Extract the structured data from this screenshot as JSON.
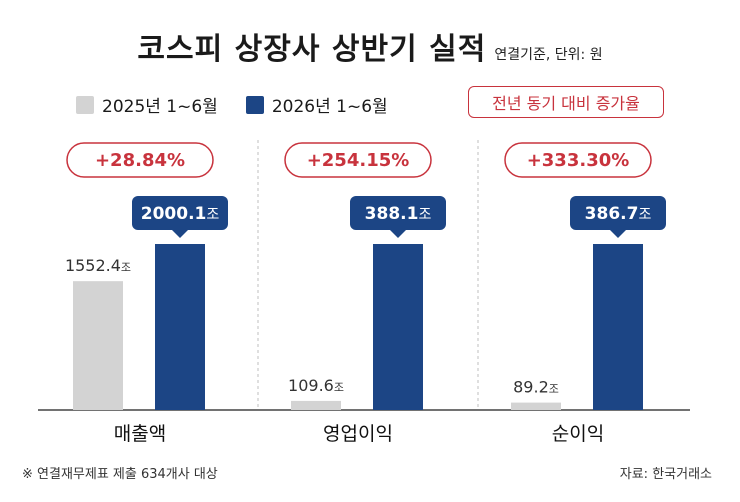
{
  "title": "코스피 상장사 상반기 실적",
  "unit_note": "연결기준, 단위: 원",
  "yoy_label": "전년 동기 대비 증가율",
  "footnote": "※ 연결재무제표 제출 634개사 대상",
  "source": "자료: 한국거래소",
  "colors": {
    "prev": "#d3d3d3",
    "curr": "#1c4585",
    "accent": "#c8333d",
    "divider": "#bfbfbf"
  },
  "chart_data": {
    "type": "bar",
    "title": "코스피 상장사 상반기 실적",
    "categories": [
      "매출액",
      "영업이익",
      "순이익"
    ],
    "series": [
      {
        "name": "2025년 1~6월",
        "values": [
          1552.4,
          109.6,
          89.2
        ],
        "labels": [
          "1552.4",
          "109.6",
          "89.2"
        ]
      },
      {
        "name": "2026년 1~6월",
        "values": [
          2000.1,
          388.1,
          386.7
        ],
        "labels": [
          "2000.1",
          "388.1",
          "386.7"
        ]
      }
    ],
    "value_unit": "조",
    "growth_labels": [
      "+28.84%",
      "+254.15%",
      "+333.30%"
    ],
    "legend_position": "top-left"
  }
}
